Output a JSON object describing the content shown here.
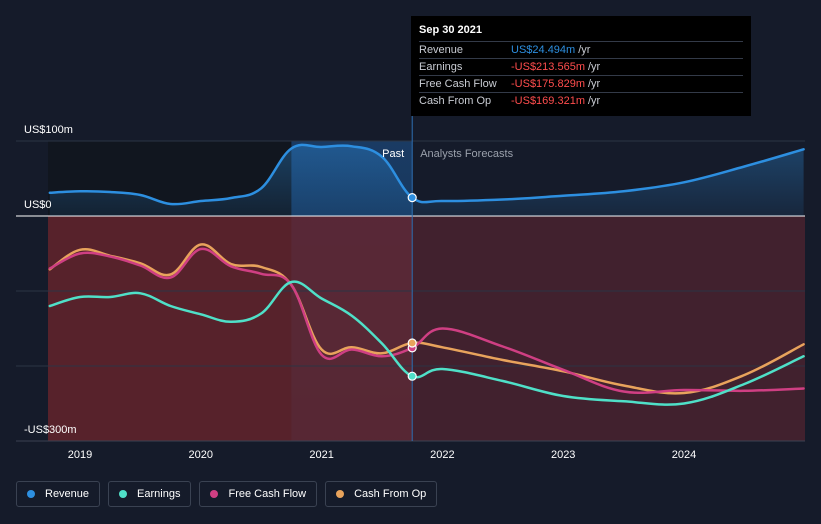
{
  "chart_data": {
    "type": "line",
    "y_unit": "US$m",
    "ylim": [
      -300,
      100
    ],
    "y_ticks": [
      {
        "value": 100,
        "label": "US$100m"
      },
      {
        "value": 0,
        "label": "US$0"
      },
      {
        "value": -300,
        "label": "-US$300m"
      }
    ],
    "x_ticks": [
      {
        "value": 2019,
        "label": "2019"
      },
      {
        "value": 2020,
        "label": "2020"
      },
      {
        "value": 2021,
        "label": "2021"
      },
      {
        "value": 2022,
        "label": "2022"
      },
      {
        "value": 2023,
        "label": "2023"
      },
      {
        "value": 2024,
        "label": "2024"
      }
    ],
    "xlim": [
      2018.75,
      2024.99
    ],
    "divider_x": 2021.75,
    "past_label": "Past",
    "forecast_label": "Analysts Forecasts",
    "series": [
      {
        "name": "Revenue",
        "color": "#2d8fe0",
        "points": [
          [
            2018.75,
            31
          ],
          [
            2019.0,
            33
          ],
          [
            2019.25,
            32
          ],
          [
            2019.5,
            28
          ],
          [
            2019.75,
            16
          ],
          [
            2020.0,
            20
          ],
          [
            2020.25,
            24
          ],
          [
            2020.5,
            37
          ],
          [
            2020.75,
            90
          ],
          [
            2021.0,
            92
          ],
          [
            2021.25,
            93
          ],
          [
            2021.5,
            79
          ],
          [
            2021.75,
            24.5
          ],
          [
            2022.0,
            20
          ],
          [
            2022.5,
            22
          ],
          [
            2023.0,
            27
          ],
          [
            2023.5,
            33
          ],
          [
            2024.0,
            45
          ],
          [
            2024.5,
            66
          ],
          [
            2024.99,
            89
          ]
        ]
      },
      {
        "name": "Earnings",
        "color": "#4fe0c8",
        "points": [
          [
            2018.75,
            -120
          ],
          [
            2019.0,
            -108
          ],
          [
            2019.25,
            -108
          ],
          [
            2019.5,
            -103
          ],
          [
            2019.75,
            -120
          ],
          [
            2020.0,
            -131
          ],
          [
            2020.25,
            -141
          ],
          [
            2020.5,
            -130
          ],
          [
            2020.75,
            -88
          ],
          [
            2021.0,
            -110
          ],
          [
            2021.25,
            -133
          ],
          [
            2021.5,
            -170
          ],
          [
            2021.75,
            -213.6
          ],
          [
            2022.0,
            -204
          ],
          [
            2022.5,
            -220
          ],
          [
            2023.0,
            -240
          ],
          [
            2023.5,
            -247
          ],
          [
            2024.0,
            -250
          ],
          [
            2024.5,
            -224
          ],
          [
            2024.99,
            -187
          ]
        ]
      },
      {
        "name": "Free Cash Flow",
        "color": "#cf3f83",
        "points": [
          [
            2018.75,
            -70
          ],
          [
            2019.0,
            -50
          ],
          [
            2019.25,
            -54
          ],
          [
            2019.5,
            -66
          ],
          [
            2019.75,
            -82
          ],
          [
            2020.0,
            -44
          ],
          [
            2020.25,
            -67
          ],
          [
            2020.5,
            -77
          ],
          [
            2020.75,
            -92
          ],
          [
            2021.0,
            -185
          ],
          [
            2021.25,
            -178
          ],
          [
            2021.5,
            -187
          ],
          [
            2021.75,
            -175.8
          ],
          [
            2022.0,
            -150
          ],
          [
            2022.5,
            -174
          ],
          [
            2023.0,
            -205
          ],
          [
            2023.5,
            -234
          ],
          [
            2024.0,
            -232
          ],
          [
            2024.5,
            -233
          ],
          [
            2024.99,
            -230
          ]
        ]
      },
      {
        "name": "Cash From Op",
        "color": "#e8a35c",
        "points": [
          [
            2018.75,
            -71
          ],
          [
            2019.0,
            -45
          ],
          [
            2019.25,
            -53
          ],
          [
            2019.5,
            -63
          ],
          [
            2019.75,
            -78
          ],
          [
            2020.0,
            -38
          ],
          [
            2020.25,
            -64
          ],
          [
            2020.5,
            -68
          ],
          [
            2020.75,
            -92
          ],
          [
            2021.0,
            -178
          ],
          [
            2021.25,
            -175
          ],
          [
            2021.5,
            -183
          ],
          [
            2021.75,
            -169.3
          ],
          [
            2022.0,
            -175
          ],
          [
            2022.5,
            -192
          ],
          [
            2023.0,
            -207
          ],
          [
            2023.5,
            -226
          ],
          [
            2024.0,
            -236
          ],
          [
            2024.5,
            -212
          ],
          [
            2024.99,
            -171
          ]
        ]
      }
    ]
  },
  "tooltip": {
    "date": "Sep 30 2021",
    "rows": [
      {
        "label": "Revenue",
        "value": "US$24.494m",
        "unit": "/yr",
        "color": "#2d8fe0"
      },
      {
        "label": "Earnings",
        "value": "-US$213.565m",
        "unit": "/yr",
        "color": "#ff4d4d"
      },
      {
        "label": "Free Cash Flow",
        "value": "-US$175.829m",
        "unit": "/yr",
        "color": "#ff4d4d"
      },
      {
        "label": "Cash From Op",
        "value": "-US$169.321m",
        "unit": "/yr",
        "color": "#ff4d4d"
      }
    ]
  },
  "legend": [
    {
      "label": "Revenue",
      "color": "#2d8fe0"
    },
    {
      "label": "Earnings",
      "color": "#4fe0c8"
    },
    {
      "label": "Free Cash Flow",
      "color": "#cf3f83"
    },
    {
      "label": "Cash From Op",
      "color": "#e8a35c"
    }
  ]
}
